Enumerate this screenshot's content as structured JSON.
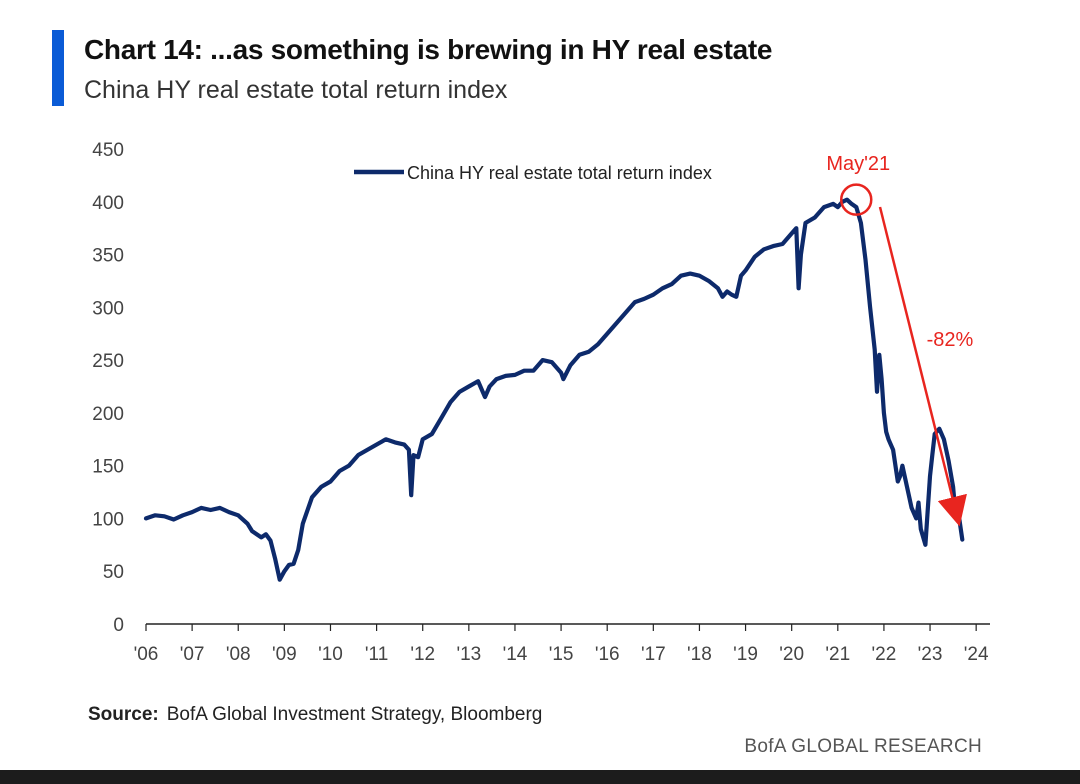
{
  "header": {
    "title": "Chart 14: ...as something is brewing in HY real estate",
    "subtitle": "China HY real estate total return index"
  },
  "footer": {
    "source_label": "Source:",
    "source_text": "BofA Global Investment Strategy, Bloomberg",
    "brand": "BofA GLOBAL RESEARCH"
  },
  "colors": {
    "accent": "#0a5bd6",
    "series": "#0d2a6b",
    "annotation": "#e8251f"
  },
  "chart_data": {
    "type": "line",
    "ylim": [
      0,
      450
    ],
    "yticks": [
      0,
      50,
      100,
      150,
      200,
      250,
      300,
      350,
      400,
      450
    ],
    "xlim": [
      2006,
      2024.3
    ],
    "xticks": [
      {
        "value": 2006,
        "label": "'06"
      },
      {
        "value": 2007,
        "label": "'07"
      },
      {
        "value": 2008,
        "label": "'08"
      },
      {
        "value": 2009,
        "label": "'09"
      },
      {
        "value": 2010,
        "label": "'10"
      },
      {
        "value": 2011,
        "label": "'11"
      },
      {
        "value": 2012,
        "label": "'12"
      },
      {
        "value": 2013,
        "label": "'13"
      },
      {
        "value": 2014,
        "label": "'14"
      },
      {
        "value": 2015,
        "label": "'15"
      },
      {
        "value": 2016,
        "label": "'16"
      },
      {
        "value": 2017,
        "label": "'17"
      },
      {
        "value": 2018,
        "label": "'18"
      },
      {
        "value": 2019,
        "label": "'19"
      },
      {
        "value": 2020,
        "label": "'20"
      },
      {
        "value": 2021,
        "label": "'21"
      },
      {
        "value": 2022,
        "label": "'22"
      },
      {
        "value": 2023,
        "label": "'23"
      },
      {
        "value": 2024,
        "label": "'24"
      }
    ],
    "legend": "top-center",
    "grid": false,
    "series": [
      {
        "name": "China HY real estate total return index",
        "x": [
          2006.0,
          2006.2,
          2006.4,
          2006.6,
          2006.8,
          2007.0,
          2007.2,
          2007.4,
          2007.6,
          2007.8,
          2008.0,
          2008.2,
          2008.3,
          2008.5,
          2008.6,
          2008.7,
          2008.8,
          2008.9,
          2009.0,
          2009.1,
          2009.2,
          2009.3,
          2009.4,
          2009.6,
          2009.8,
          2010.0,
          2010.2,
          2010.4,
          2010.6,
          2010.8,
          2011.0,
          2011.2,
          2011.4,
          2011.6,
          2011.7,
          2011.75,
          2011.8,
          2011.9,
          2012.0,
          2012.2,
          2012.4,
          2012.6,
          2012.8,
          2013.0,
          2013.2,
          2013.35,
          2013.45,
          2013.6,
          2013.8,
          2014.0,
          2014.2,
          2014.4,
          2014.6,
          2014.8,
          2015.0,
          2015.05,
          2015.2,
          2015.4,
          2015.6,
          2015.8,
          2016.0,
          2016.2,
          2016.4,
          2016.6,
          2016.8,
          2017.0,
          2017.2,
          2017.4,
          2017.6,
          2017.8,
          2018.0,
          2018.2,
          2018.4,
          2018.5,
          2018.6,
          2018.7,
          2018.8,
          2018.9,
          2019.0,
          2019.2,
          2019.4,
          2019.6,
          2019.8,
          2020.0,
          2020.1,
          2020.15,
          2020.2,
          2020.3,
          2020.5,
          2020.7,
          2020.9,
          2021.0,
          2021.1,
          2021.2,
          2021.3,
          2021.4,
          2021.5,
          2021.6,
          2021.7,
          2021.8,
          2021.85,
          2021.9,
          2021.95,
          2022.0,
          2022.05,
          2022.1,
          2022.2,
          2022.3,
          2022.35,
          2022.4,
          2022.5,
          2022.6,
          2022.7,
          2022.75,
          2022.8,
          2022.9,
          2023.0,
          2023.05,
          2023.1,
          2023.2,
          2023.3,
          2023.4,
          2023.5,
          2023.55,
          2023.6,
          2023.7
        ],
        "y": [
          100,
          103,
          102,
          99,
          103,
          106,
          110,
          108,
          110,
          106,
          103,
          95,
          88,
          82,
          85,
          79,
          62,
          42,
          50,
          56,
          57,
          70,
          95,
          120,
          130,
          135,
          145,
          150,
          160,
          165,
          170,
          175,
          172,
          170,
          165,
          122,
          160,
          158,
          175,
          180,
          195,
          210,
          220,
          225,
          230,
          215,
          225,
          232,
          235,
          236,
          240,
          240,
          250,
          248,
          238,
          232,
          245,
          255,
          258,
          265,
          275,
          285,
          295,
          305,
          308,
          312,
          318,
          322,
          330,
          332,
          330,
          325,
          318,
          310,
          315,
          312,
          310,
          330,
          335,
          348,
          355,
          358,
          360,
          370,
          375,
          318,
          350,
          380,
          385,
          395,
          398,
          395,
          400,
          402,
          398,
          395,
          380,
          345,
          300,
          260,
          220,
          255,
          232,
          200,
          182,
          175,
          165,
          135,
          140,
          150,
          130,
          110,
          100,
          115,
          90,
          75,
          140,
          160,
          180,
          185,
          175,
          155,
          130,
          105,
          110,
          80
        ]
      }
    ],
    "annotations": [
      {
        "label": "May'21",
        "x": 2021.4,
        "y": 402,
        "marker": "circle"
      },
      {
        "label": "-82%",
        "from": {
          "x": 2021.95,
          "y": 395
        },
        "to": {
          "x": 2023.95,
          "y": 100
        },
        "marker": "arrow"
      }
    ]
  }
}
